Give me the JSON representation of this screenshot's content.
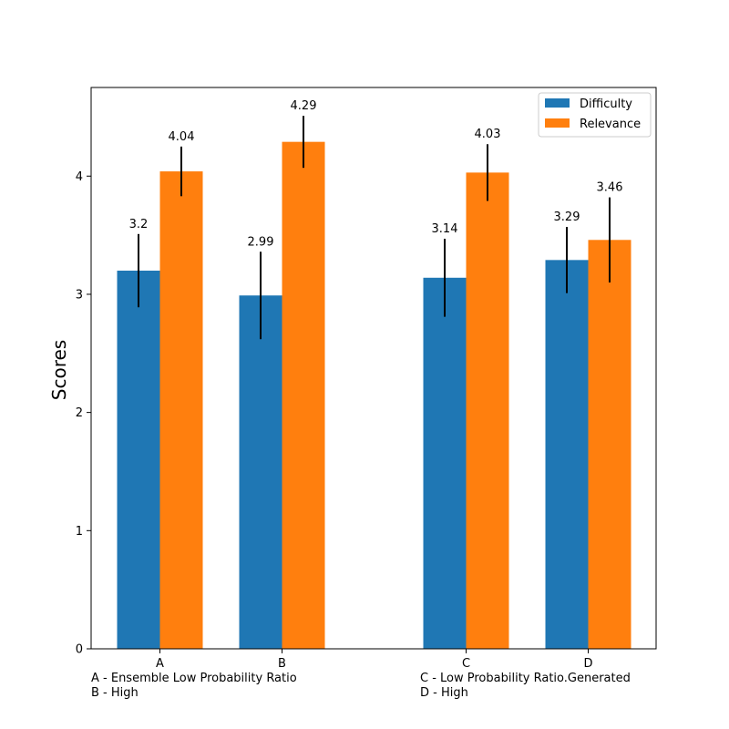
{
  "chart_data": {
    "type": "bar",
    "ylabel": "Scores",
    "ylim": [
      0,
      4.75
    ],
    "yticks": [
      0,
      1,
      2,
      3,
      4
    ],
    "categories": [
      "A",
      "B",
      "C",
      "D"
    ],
    "series": [
      {
        "name": "Difficulty",
        "color": "#1f77b4",
        "values": [
          3.2,
          2.99,
          3.14,
          3.29
        ],
        "value_labels": [
          "3.2",
          "2.99",
          "3.14",
          "3.29"
        ],
        "errors": [
          0.31,
          0.37,
          0.33,
          0.28
        ]
      },
      {
        "name": "Relevance",
        "color": "#ff7f0e",
        "values": [
          4.04,
          4.29,
          4.03,
          3.46
        ],
        "value_labels": [
          "4.04",
          "4.29",
          "4.03",
          "3.46"
        ],
        "errors": [
          0.21,
          0.22,
          0.24,
          0.36
        ]
      }
    ],
    "legend": {
      "position": "top-right"
    },
    "notes_left": [
      "A - Ensemble Low Probability Ratio",
      "B - High"
    ],
    "notes_right": [
      "C - Low Probability Ratio.Generated",
      "D - High"
    ]
  }
}
